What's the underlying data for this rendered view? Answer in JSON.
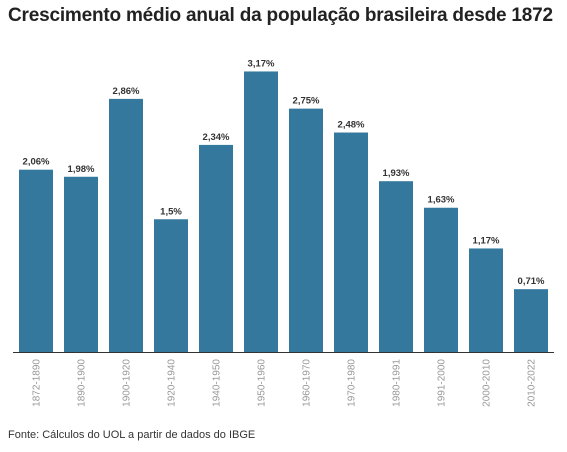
{
  "title": "Crescimento médio anual da população brasileira desde 1872",
  "source": "Fonte: Cálculos do UOL a partir de dados do IBGE",
  "colors": {
    "bar": "#34789e",
    "baseline": "#333333"
  },
  "chart_data": {
    "type": "bar",
    "title": "Crescimento médio anual da população brasileira desde 1872",
    "xlabel": "",
    "ylabel": "",
    "ylim": [
      0,
      3.3
    ],
    "grid": false,
    "categories": [
      "1872-1890",
      "1890-1900",
      "1900-1920",
      "1920-1940",
      "1940-1950",
      "1950-1960",
      "1960-1970",
      "1970-1980",
      "1980-1991",
      "1991-2000",
      "2000-2010",
      "2010-2022"
    ],
    "values": [
      2.06,
      1.98,
      2.86,
      1.5,
      2.34,
      3.17,
      2.75,
      2.48,
      1.93,
      1.63,
      1.17,
      0.71
    ],
    "value_labels": [
      "2,06%",
      "1,98%",
      "2,86%",
      "1,5%",
      "2,34%",
      "3,17%",
      "2,75%",
      "2,48%",
      "1,93%",
      "1,63%",
      "1,17%",
      "0,71%"
    ]
  }
}
